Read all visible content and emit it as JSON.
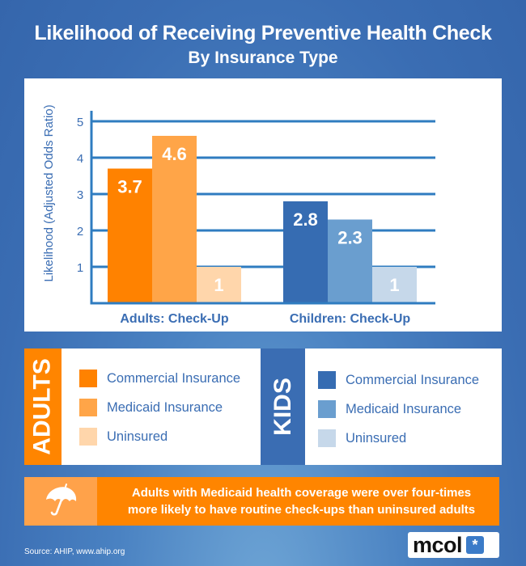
{
  "header": {
    "title_line1": "Likelihood of Receiving Preventive Health Check",
    "title_line2": "By Insurance Type"
  },
  "chart_data": {
    "type": "bar",
    "title": "Likelihood of Receiving Preventive Health Check By Insurance Type",
    "xlabel": "",
    "ylabel": "Likelihood (Adjusted Odds Ratio)",
    "ylim": [
      0,
      5
    ],
    "yticks": [
      "1",
      "2",
      "3",
      "4",
      "5"
    ],
    "grid": true,
    "categories": [
      "Adults: Check-Up",
      "Children: Check-Up"
    ],
    "groups": [
      {
        "category": "Adults: Check-Up",
        "bars": [
          {
            "name": "Commercial Insurance",
            "value": 3.7,
            "label": "3.7",
            "color": "#ff8200"
          },
          {
            "name": "Medicaid Insurance",
            "value": 4.6,
            "label": "4.6",
            "color": "#ffa548"
          },
          {
            "name": "Uninsured",
            "value": 1,
            "label": "1",
            "color": "#ffd6ab"
          }
        ]
      },
      {
        "category": "Children: Check-Up",
        "bars": [
          {
            "name": "Commercial Insurance",
            "value": 2.8,
            "label": "2.8",
            "color": "#366cb2"
          },
          {
            "name": "Medicaid Insurance",
            "value": 2.3,
            "label": "2.3",
            "color": "#6a9ecf"
          },
          {
            "name": "Uninsured",
            "value": 1,
            "label": "1",
            "color": "#c6d8ea"
          }
        ]
      }
    ]
  },
  "legend": {
    "adults": {
      "tab_label": "ADULTS",
      "color": "#ff8500",
      "items": [
        {
          "label": "Commercial Insurance",
          "color": "#ff8200"
        },
        {
          "label": "Medicaid Insurance",
          "color": "#ffa548"
        },
        {
          "label": "Uninsured",
          "color": "#ffd6ab"
        }
      ]
    },
    "kids": {
      "tab_label": "KIDS",
      "color": "#3a6db3",
      "items": [
        {
          "label": "Commercial Insurance",
          "color": "#366cb2"
        },
        {
          "label": "Medicaid Insurance",
          "color": "#6a9ecf"
        },
        {
          "label": "Uninsured",
          "color": "#c6d8ea"
        }
      ]
    }
  },
  "callout": {
    "icon": "umbrella-icon",
    "line1": "Adults with Medicaid health coverage were over four-times",
    "line2": "more likely to have routine check-ups than uninsured adults"
  },
  "footer": {
    "source": "Source: AHIP, www.ahip.org",
    "logo_text": "mcol",
    "logo_mark": "*"
  },
  "colors": {
    "axis": "#2f7cc0",
    "text_blue": "#3a6db3"
  }
}
